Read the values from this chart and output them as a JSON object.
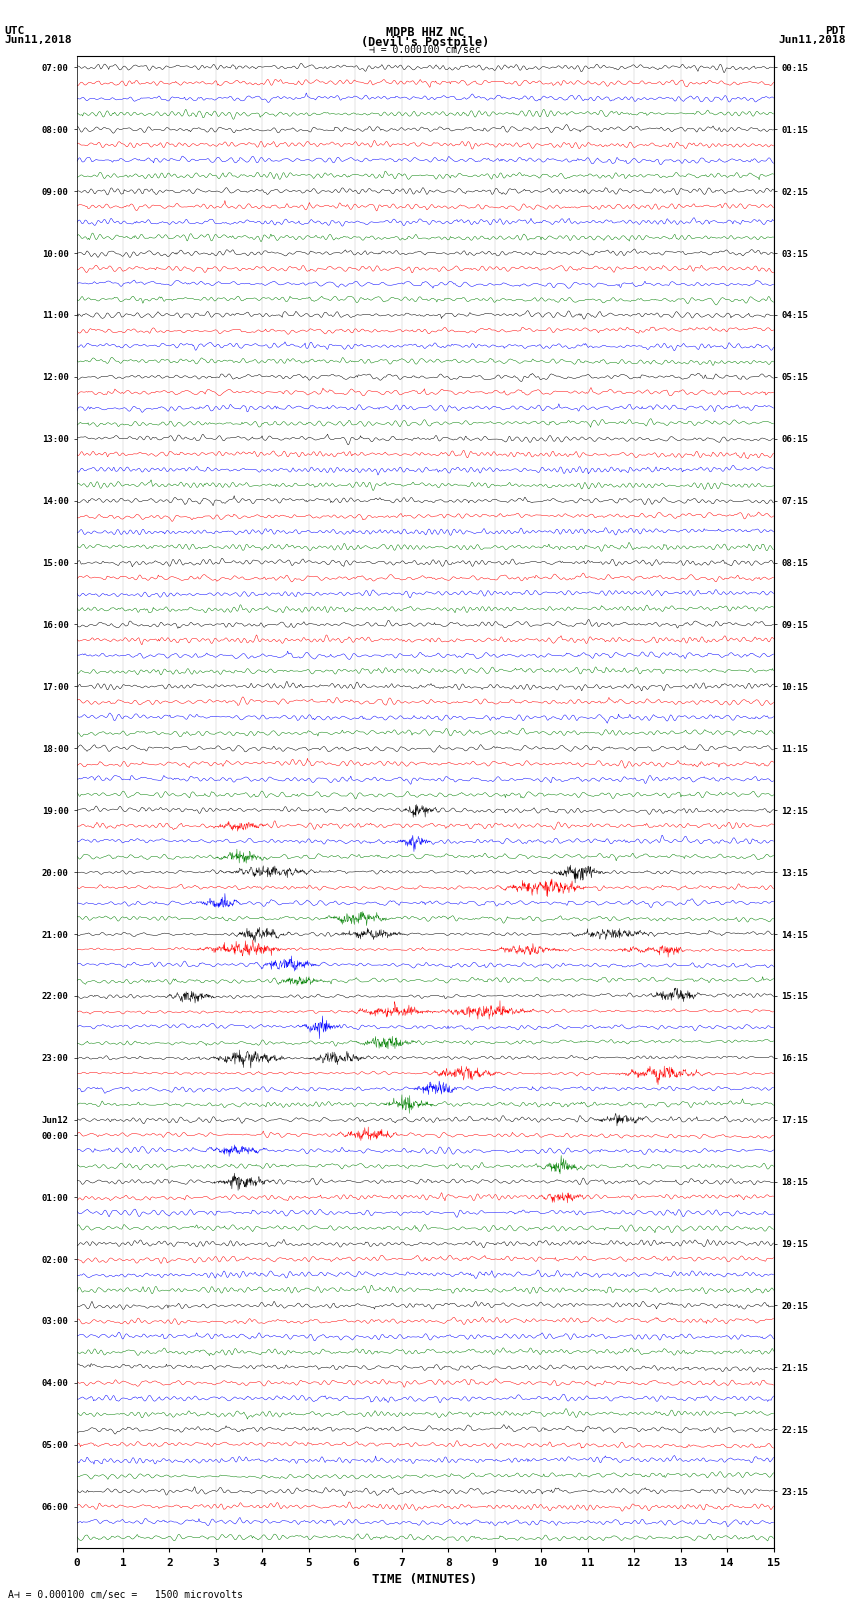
{
  "title_line1": "MDPB HHZ NC",
  "title_line2": "(Devil's Postpile)",
  "scale_label": "= 0.000100 cm/sec",
  "scale_label2": "= 0.000100 cm/sec =   1500 microvolts",
  "left_header_line1": "UTC",
  "left_header_line2": "Jun11,2018",
  "right_header_line1": "PDT",
  "right_header_line2": "Jun11,2018",
  "xlabel": "TIME (MINUTES)",
  "left_times": [
    "07:00",
    "",
    "",
    "",
    "08:00",
    "",
    "",
    "",
    "09:00",
    "",
    "",
    "",
    "10:00",
    "",
    "",
    "",
    "11:00",
    "",
    "",
    "",
    "12:00",
    "",
    "",
    "",
    "13:00",
    "",
    "",
    "",
    "14:00",
    "",
    "",
    "",
    "15:00",
    "",
    "",
    "",
    "16:00",
    "",
    "",
    "",
    "17:00",
    "",
    "",
    "",
    "18:00",
    "",
    "",
    "",
    "19:00",
    "",
    "",
    "",
    "20:00",
    "",
    "",
    "",
    "21:00",
    "",
    "",
    "",
    "22:00",
    "",
    "",
    "",
    "23:00",
    "",
    "",
    "",
    "Jun12",
    "00:00",
    "",
    "",
    "",
    "01:00",
    "",
    "",
    "",
    "02:00",
    "",
    "",
    "",
    "03:00",
    "",
    "",
    "",
    "04:00",
    "",
    "",
    "",
    "05:00",
    "",
    "",
    "",
    "06:00",
    "",
    ""
  ],
  "right_times": [
    "00:15",
    "",
    "",
    "",
    "01:15",
    "",
    "",
    "",
    "02:15",
    "",
    "",
    "",
    "03:15",
    "",
    "",
    "",
    "04:15",
    "",
    "",
    "",
    "05:15",
    "",
    "",
    "",
    "06:15",
    "",
    "",
    "",
    "07:15",
    "",
    "",
    "",
    "08:15",
    "",
    "",
    "",
    "09:15",
    "",
    "",
    "",
    "10:15",
    "",
    "",
    "",
    "11:15",
    "",
    "",
    "",
    "12:15",
    "",
    "",
    "",
    "13:15",
    "",
    "",
    "",
    "14:15",
    "",
    "",
    "",
    "15:15",
    "",
    "",
    "",
    "16:15",
    "",
    "",
    "",
    "17:15",
    "",
    "",
    "",
    "18:15",
    "",
    "",
    "",
    "19:15",
    "",
    "",
    "",
    "20:15",
    "",
    "",
    "",
    "21:15",
    "",
    "",
    "",
    "22:15",
    "",
    "",
    "",
    "23:15",
    ""
  ],
  "n_rows": 96,
  "n_points": 1800,
  "colors": [
    "black",
    "red",
    "blue",
    "green"
  ],
  "bg_color": "#ffffff",
  "xmin": 0,
  "xmax": 15,
  "xticks": [
    0,
    1,
    2,
    3,
    4,
    5,
    6,
    7,
    8,
    9,
    10,
    11,
    12,
    13,
    14,
    15
  ],
  "amplitude": 0.32,
  "event_rows": [
    48,
    49,
    50,
    51,
    52,
    53,
    54,
    55,
    56,
    57,
    58,
    59,
    60,
    61,
    62,
    63,
    64,
    65,
    66,
    67,
    68,
    69,
    70,
    71,
    72,
    73
  ],
  "big_event_rows": [
    52,
    53,
    56,
    57,
    60,
    61,
    64,
    65
  ]
}
